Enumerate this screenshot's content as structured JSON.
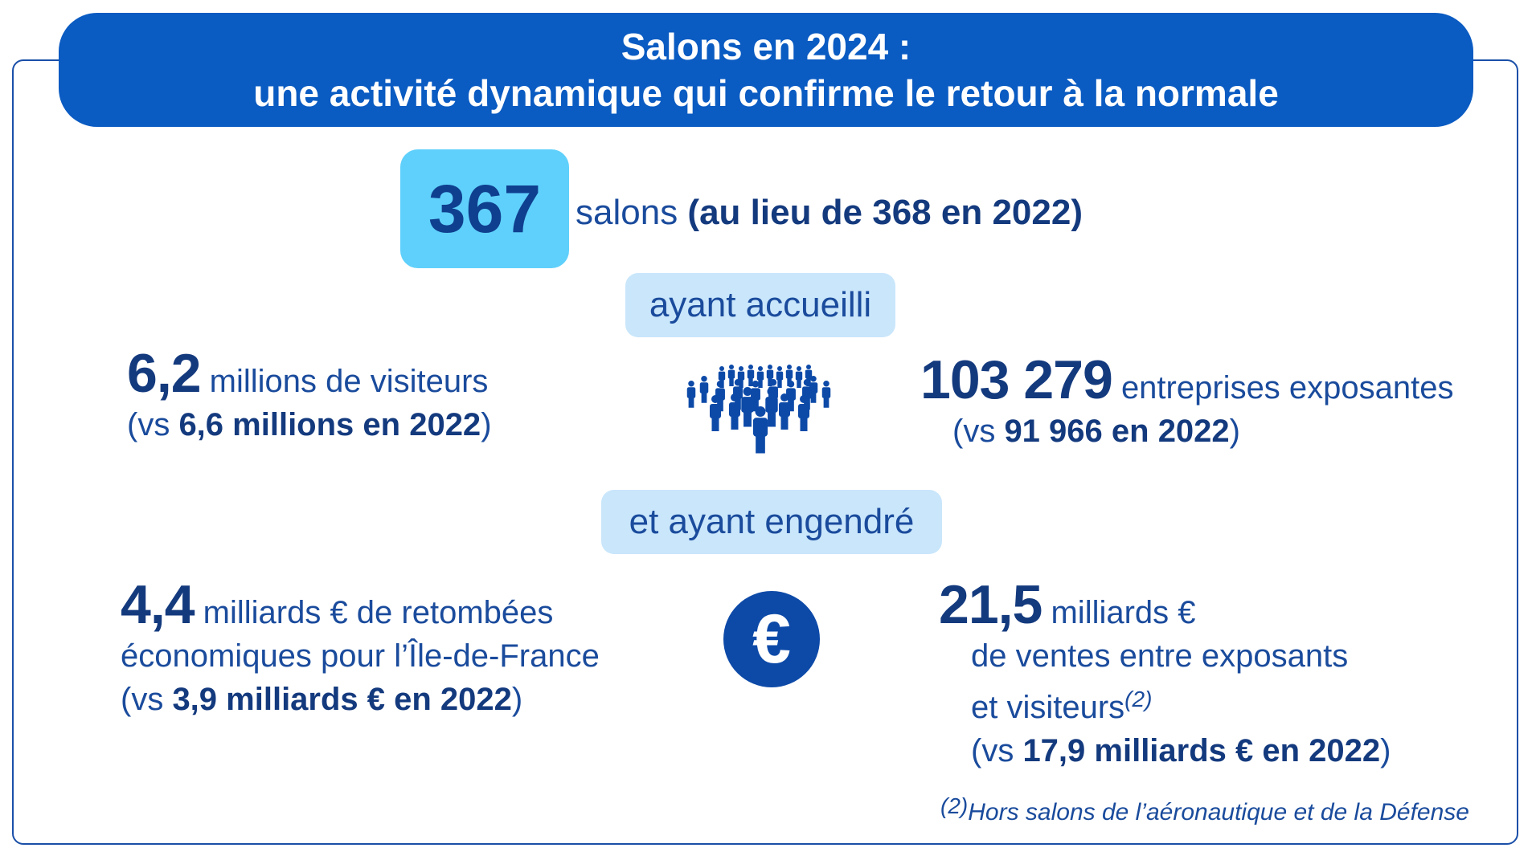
{
  "header": {
    "line1": "Salons en 2024 :",
    "line2": "une activité dynamique qui confirme le retour à la normale"
  },
  "salons": {
    "count": "367",
    "label": "salons",
    "comparison": "(au lieu de 368 en 2022)"
  },
  "pills": {
    "accueilli": "ayant accueilli",
    "engendre": "et ayant engendré"
  },
  "visiteurs": {
    "value": "6,2",
    "label": "millions de visiteurs",
    "cmp_prefix": "(vs ",
    "cmp_value": "6,6 millions en 2022",
    "cmp_suffix": ")"
  },
  "exposants": {
    "value": "103 279",
    "label": "entreprises exposantes",
    "cmp_prefix": "(vs ",
    "cmp_value": "91 966 en 2022",
    "cmp_suffix": ")"
  },
  "retombees": {
    "value": "4,4",
    "label": "milliards € de retombées",
    "line2": "économiques pour l’Île-de-France",
    "cmp_prefix": "(vs ",
    "cmp_value": "3,9 milliards € en 2022",
    "cmp_suffix": ")"
  },
  "ventes": {
    "value": "21,5",
    "label": "milliards €",
    "line2": "de ventes entre exposants",
    "line3": "et visiteurs",
    "note_ref": "(2)",
    "cmp_prefix": "(vs ",
    "cmp_value": "17,9 milliards € en 2022",
    "cmp_suffix": ")"
  },
  "footnote": {
    "ref": "(2)",
    "text": "Hors salons de l’aéronautique et de la Défense"
  },
  "icons": {
    "people": "crowd-icon",
    "euro": "euro-icon",
    "euro_glyph": "€"
  },
  "colors": {
    "banner": "#0a5bc2",
    "number_box": "#5fd0fb",
    "pill": "#c9e6fb",
    "text": "#1a4b9c",
    "emphasis": "#143a7e",
    "euro_circle": "#0d4aa8"
  }
}
